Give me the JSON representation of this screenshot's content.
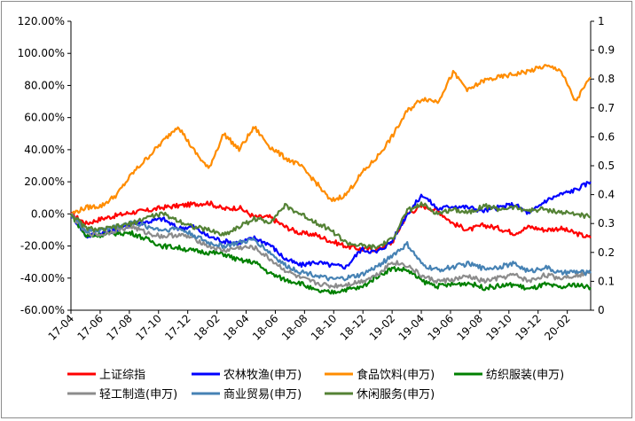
{
  "chart_data": {
    "type": "line",
    "title": "",
    "xlabel": "",
    "ylabel": "",
    "x_ticks": [
      "17-04",
      "17-06",
      "17-08",
      "17-10",
      "17-12",
      "18-02",
      "18-04",
      "18-06",
      "18-08",
      "18-10",
      "18-12",
      "19-02",
      "19-04",
      "19-06",
      "19-08",
      "19-10",
      "19-12",
      "20-02"
    ],
    "y_left": {
      "min": -0.6,
      "max": 1.2,
      "step": 0.2,
      "tick_labels": [
        "-60.00%",
        "-40.00%",
        "-20.00%",
        "0.00%",
        "20.00%",
        "40.00%",
        "60.00%",
        "80.00%",
        "100.00%",
        "120.00%"
      ]
    },
    "y_right": {
      "min": 0,
      "max": 1,
      "step": 0.1,
      "tick_labels": [
        "0",
        "0.1",
        "0.2",
        "0.3",
        "0.4",
        "0.5",
        "0.6",
        "0.7",
        "0.8",
        "0.9",
        "1"
      ]
    },
    "grid": false,
    "legend_position": "bottom",
    "x_index_range": [
      0,
      34
    ],
    "series": [
      {
        "name": "上证综指",
        "color": "#ff0000",
        "values": [
          0.0,
          -0.06,
          -0.03,
          -0.01,
          0.01,
          0.02,
          0.04,
          0.05,
          0.06,
          0.07,
          0.03,
          0.04,
          -0.02,
          -0.02,
          -0.08,
          -0.12,
          -0.13,
          -0.17,
          -0.2,
          -0.22,
          -0.22,
          -0.18,
          0.0,
          0.05,
          0.02,
          -0.06,
          -0.1,
          -0.07,
          -0.09,
          -0.12,
          -0.08,
          -0.1,
          -0.09,
          -0.12,
          -0.15
        ]
      },
      {
        "name": "农林牧渔(申万)",
        "color": "#0000ff",
        "values": [
          0.0,
          -0.14,
          -0.12,
          -0.1,
          -0.06,
          -0.05,
          -0.03,
          -0.09,
          -0.08,
          -0.14,
          -0.17,
          -0.18,
          -0.15,
          -0.19,
          -0.28,
          -0.32,
          -0.3,
          -0.32,
          -0.33,
          -0.22,
          -0.24,
          -0.17,
          0.0,
          0.12,
          0.03,
          0.05,
          0.04,
          0.02,
          0.04,
          0.06,
          0.0,
          0.08,
          0.12,
          0.15,
          0.2
        ]
      },
      {
        "name": "食品饮料(申万)",
        "color": "#ff8c00",
        "values": [
          0.0,
          0.04,
          0.05,
          0.12,
          0.25,
          0.35,
          0.45,
          0.55,
          0.4,
          0.28,
          0.5,
          0.4,
          0.54,
          0.42,
          0.35,
          0.3,
          0.2,
          0.08,
          0.12,
          0.25,
          0.35,
          0.48,
          0.64,
          0.72,
          0.7,
          0.88,
          0.77,
          0.83,
          0.85,
          0.87,
          0.89,
          0.92,
          0.9,
          0.7,
          0.85
        ]
      },
      {
        "name": "纺织服装(申万)",
        "color": "#008000",
        "values": [
          0.0,
          -0.14,
          -0.13,
          -0.12,
          -0.12,
          -0.16,
          -0.2,
          -0.21,
          -0.23,
          -0.24,
          -0.25,
          -0.29,
          -0.3,
          -0.37,
          -0.41,
          -0.43,
          -0.48,
          -0.49,
          -0.47,
          -0.46,
          -0.39,
          -0.34,
          -0.35,
          -0.42,
          -0.45,
          -0.44,
          -0.43,
          -0.46,
          -0.45,
          -0.44,
          -0.47,
          -0.44,
          -0.46,
          -0.44,
          -0.46
        ]
      },
      {
        "name": "轻工制造(申万)",
        "color": "#8c8c8c",
        "values": [
          0.0,
          -0.12,
          -0.13,
          -0.1,
          -0.08,
          -0.12,
          -0.14,
          -0.13,
          -0.15,
          -0.2,
          -0.23,
          -0.21,
          -0.21,
          -0.28,
          -0.35,
          -0.4,
          -0.43,
          -0.45,
          -0.44,
          -0.42,
          -0.38,
          -0.3,
          -0.32,
          -0.39,
          -0.42,
          -0.41,
          -0.39,
          -0.42,
          -0.4,
          -0.38,
          -0.42,
          -0.38,
          -0.4,
          -0.38,
          -0.37
        ]
      },
      {
        "name": "商业贸易(申万)",
        "color": "#4682b4",
        "values": [
          0.0,
          -0.11,
          -0.1,
          -0.08,
          -0.05,
          -0.08,
          -0.1,
          -0.09,
          -0.13,
          -0.18,
          -0.2,
          -0.18,
          -0.16,
          -0.24,
          -0.32,
          -0.36,
          -0.38,
          -0.41,
          -0.4,
          -0.38,
          -0.33,
          -0.26,
          -0.19,
          -0.32,
          -0.35,
          -0.33,
          -0.31,
          -0.34,
          -0.33,
          -0.31,
          -0.36,
          -0.33,
          -0.37,
          -0.36,
          -0.37
        ]
      },
      {
        "name": "休闲服务(申万)",
        "color": "#548235",
        "values": [
          0.0,
          -0.09,
          -0.1,
          -0.08,
          -0.06,
          -0.02,
          0.0,
          -0.04,
          -0.08,
          -0.1,
          -0.13,
          -0.08,
          -0.03,
          -0.05,
          0.05,
          0.0,
          -0.05,
          -0.1,
          -0.18,
          -0.2,
          -0.21,
          -0.16,
          0.02,
          0.06,
          0.0,
          0.03,
          0.01,
          0.05,
          0.03,
          0.04,
          0.02,
          0.03,
          0.01,
          0.0,
          -0.02
        ]
      }
    ]
  }
}
